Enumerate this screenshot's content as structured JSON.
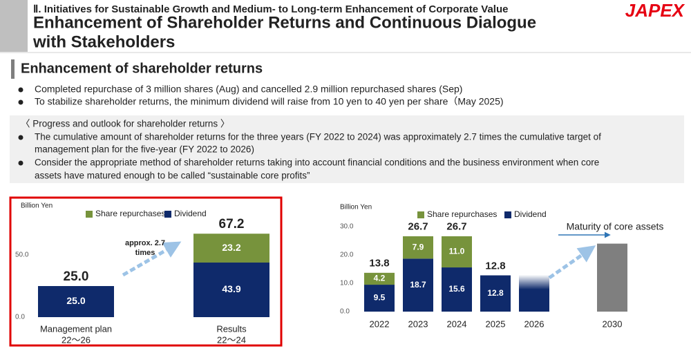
{
  "header": {
    "category": "Ⅱ. Initiatives for Sustainable Growth and Medium- to Long-term Enhancement of Corporate Value",
    "title": [
      "Enhancement of Shareholder Returns and Continuous Dialogue",
      "with Stakeholders"
    ],
    "logo": "JAPEX"
  },
  "section": {
    "title": "Enhancement of shareholder returns",
    "bullets": [
      "Completed repurchase of 3 million shares (Aug) and cancelled 2.9 million repurchased shares (Sep)",
      "To stabilize shareholder returns, the minimum dividend will raise from 10 yen to 40 yen per share（May 2025)"
    ]
  },
  "progress": {
    "heading": "〈 Progress and outlook for shareholder returns 〉",
    "bullets": [
      [
        "The cumulative amount of shareholder returns for the three years (FY 2022 to 2024) was approximately 2.7 times the cumulative target of",
        "management plan for the five-year (FY 2022 to 2026)"
      ],
      [
        "Consider the appropriate method of shareholder returns taking into account financial conditions and the business environment when core",
        "assets have matured enough to be called “sustainable core profits”"
      ]
    ]
  },
  "chart_data": [
    {
      "type": "bar",
      "stacked": true,
      "y_label": "Billion Yen",
      "categories": [
        [
          "Management plan",
          "22～26"
        ],
        [
          "Results",
          "22～24"
        ]
      ],
      "series": [
        {
          "name": "Share repurchases",
          "color": "#77933c",
          "values": [
            null,
            23.2
          ],
          "value_labels": [
            null,
            "23.2"
          ]
        },
        {
          "name": "Dividend",
          "color": "#0f2a6b",
          "values": [
            25.0,
            43.9
          ],
          "value_labels": [
            "25.0",
            "43.9"
          ]
        }
      ],
      "totals": {
        "values": [
          25.0,
          67.2
        ],
        "value_labels": [
          "25.0",
          "67.2"
        ]
      },
      "ylim": [
        0,
        80
      ],
      "yticks": [
        {
          "value": 0,
          "label": "0.0"
        },
        {
          "value": 50,
          "label": "50.0"
        }
      ],
      "annotation": [
        "approx. 2.7",
        "times"
      ]
    },
    {
      "type": "bar",
      "stacked": true,
      "y_label": "Billion Yen",
      "categories": [
        "2022",
        "2023",
        "2024",
        "2025",
        "2026",
        "2030"
      ],
      "series": [
        {
          "name": "Share repurchases",
          "color": "#77933c",
          "values": [
            4.2,
            7.9,
            11.0,
            null,
            null,
            null
          ],
          "value_labels": [
            "4.2",
            "7.9",
            "11.0",
            null,
            null,
            null
          ]
        },
        {
          "name": "Dividend",
          "color": "#0f2a6b",
          "values": [
            9.5,
            18.7,
            15.6,
            12.8,
            null,
            null
          ],
          "value_labels": [
            "9.5",
            "18.7",
            "15.6",
            "12.8",
            null,
            null
          ]
        }
      ],
      "totals": {
        "values": [
          13.8,
          26.7,
          26.7,
          12.8,
          null,
          null
        ],
        "value_labels": [
          "13.8",
          "26.7",
          "26.7",
          "12.8",
          null,
          null
        ]
      },
      "projection": {
        "values": [
          null,
          null,
          null,
          null,
          13,
          24
        ],
        "colors": [
          null,
          null,
          null,
          null,
          "#0f2a6b",
          "#7f7f7f"
        ],
        "faded": [
          false,
          false,
          false,
          false,
          true,
          false
        ]
      },
      "ylim": [
        0,
        32
      ],
      "yticks": [
        {
          "value": 0,
          "label": "0.0"
        },
        {
          "value": 10,
          "label": "10.0"
        },
        {
          "value": 20,
          "label": "20.0"
        },
        {
          "value": 30,
          "label": "30.0"
        }
      ],
      "annotation": "Maturity of core assets"
    }
  ]
}
